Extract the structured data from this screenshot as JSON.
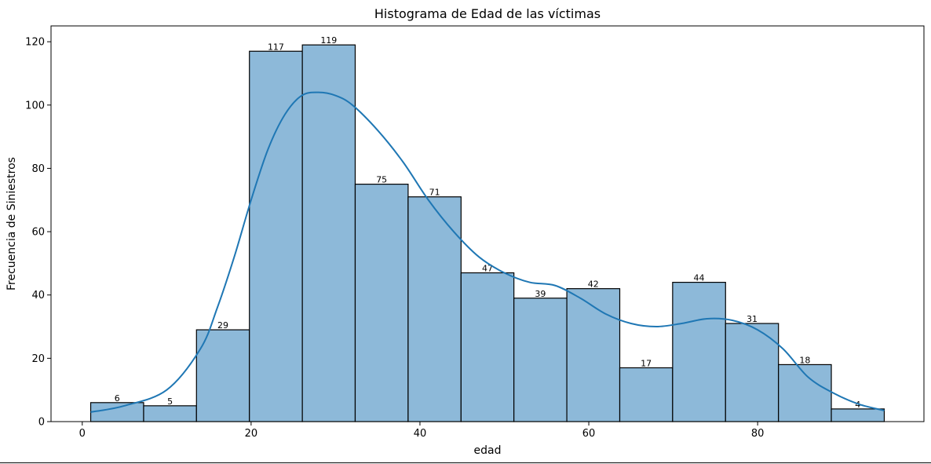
{
  "chart_data": {
    "type": "bar",
    "title": "Histograma de Edad de las víctimas",
    "xlabel": "edad",
    "ylabel": "Frecuencia de Siniestros",
    "bin_edges": [
      1,
      7.27,
      13.53,
      19.8,
      26.07,
      32.33,
      38.6,
      44.87,
      51.13,
      57.4,
      63.67,
      69.93,
      76.2,
      82.47,
      88.73,
      95
    ],
    "values": [
      6,
      5,
      29,
      117,
      119,
      75,
      71,
      47,
      39,
      42,
      17,
      44,
      31,
      18,
      4
    ],
    "data_labels": [
      "6",
      "5",
      "29",
      "117",
      "119",
      "75",
      "71",
      "47",
      "39",
      "42",
      "17",
      "44",
      "31",
      "18",
      "4"
    ],
    "kde": {
      "x": [
        1,
        5,
        10,
        14,
        16,
        18,
        20,
        22,
        24,
        26,
        28,
        30,
        32,
        35,
        38,
        41,
        44,
        47,
        50,
        53,
        56,
        59,
        62,
        65,
        68,
        71,
        74,
        77,
        80,
        83,
        86,
        89,
        92,
        95
      ],
      "y": [
        3,
        5,
        10,
        23,
        36,
        52,
        70,
        86,
        97,
        103,
        104,
        103,
        100,
        92,
        82,
        70,
        60,
        52,
        47,
        44,
        43,
        39,
        34,
        31,
        30,
        31,
        32.5,
        32,
        29,
        23,
        14,
        9,
        5.5,
        3.5
      ]
    },
    "xlim": [
      -3.7,
      99.7
    ],
    "ylim": [
      0,
      125
    ],
    "xticks": [
      0,
      20,
      40,
      60,
      80
    ],
    "yticks": [
      0,
      20,
      40,
      60,
      80,
      100,
      120
    ],
    "xtick_labels": [
      "0",
      "20",
      "40",
      "60",
      "80"
    ],
    "ytick_labels": [
      "0",
      "20",
      "40",
      "60",
      "80",
      "100",
      "120"
    ],
    "grid": false,
    "colors": {
      "bar_fill": "#8db9d9",
      "bar_edge": "#000000",
      "kde_line": "#1f77b4"
    }
  }
}
